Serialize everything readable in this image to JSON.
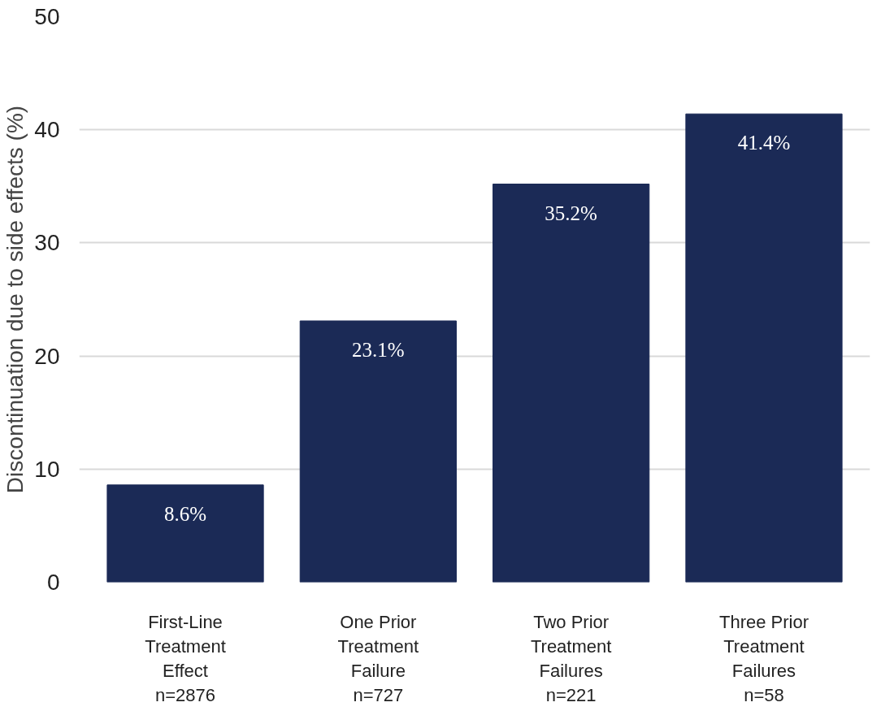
{
  "chart_data": {
    "type": "bar",
    "ylabel": "Discontinuation due to side effects (%)",
    "categories": [
      "First-Line\nTreatment\nEffect\nn=2876",
      "One Prior\nTreatment\nFailure\nn=727",
      "Two Prior\nTreatment\nFailures\nn=221",
      "Three Prior\nTreatment\nFailures\nn=58"
    ],
    "values": [
      8.6,
      23.1,
      35.2,
      41.4
    ],
    "value_labels": [
      "8.6%",
      "23.1%",
      "35.2%",
      "41.4%"
    ],
    "color": "#1b2a56",
    "ylim": [
      0,
      50
    ],
    "yticks": [
      0,
      10,
      20,
      30,
      40,
      50
    ],
    "grid": "y"
  }
}
